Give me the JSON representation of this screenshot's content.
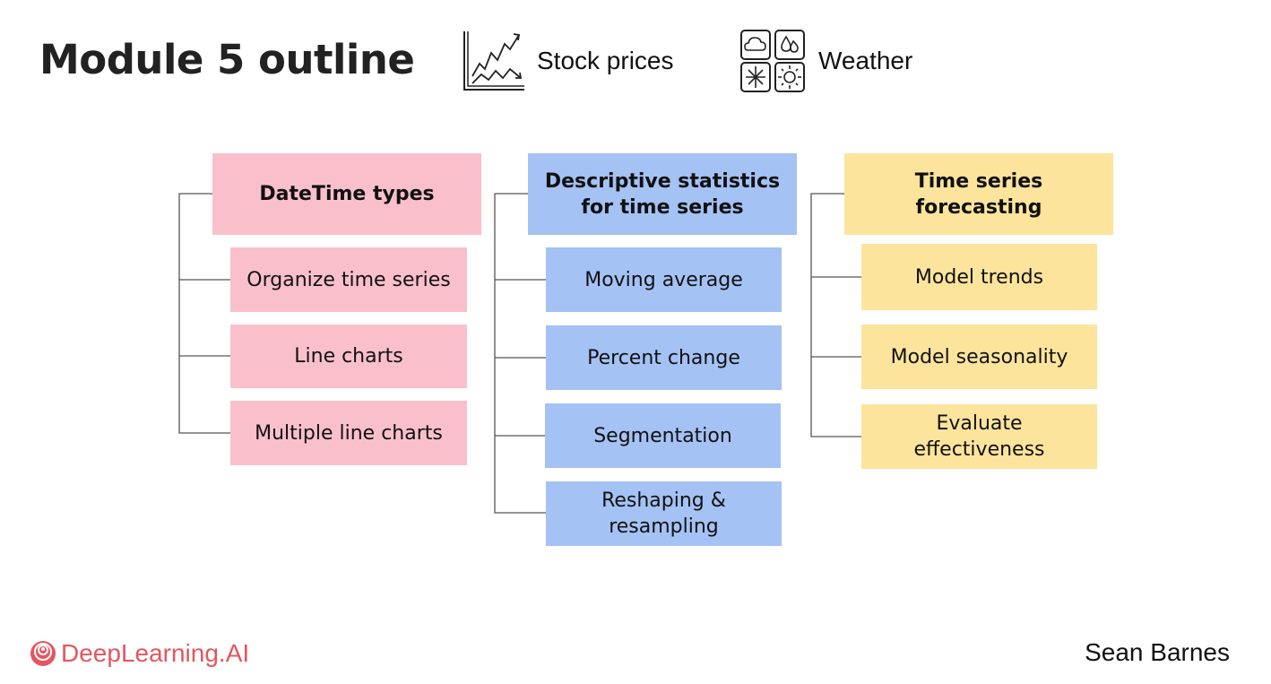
{
  "header": {
    "title": "Module 5 outline",
    "stock_label": "Stock prices",
    "weather_label": "Weather",
    "stock_icon": "stock-chart-icon",
    "weather_icon": "weather-grid-icon"
  },
  "columns": [
    {
      "heading": "DateTime types",
      "color": "#f9c0cb",
      "items": [
        "Organize time series",
        "Line charts",
        "Multiple line charts"
      ]
    },
    {
      "heading": "Descriptive statistics for time series",
      "color": "#a4c2f4",
      "items": [
        "Moving average",
        "Percent change",
        "Segmentation",
        "Reshaping & resampling"
      ]
    },
    {
      "heading": "Time series forecasting",
      "color": "#fde49c",
      "items": [
        "Model trends",
        "Model seasonality",
        "Evaluate effectiveness"
      ]
    }
  ],
  "footer": {
    "brand": "DeepLearning.AI",
    "brand_color": "#e4565f",
    "author": "Sean Barnes"
  }
}
